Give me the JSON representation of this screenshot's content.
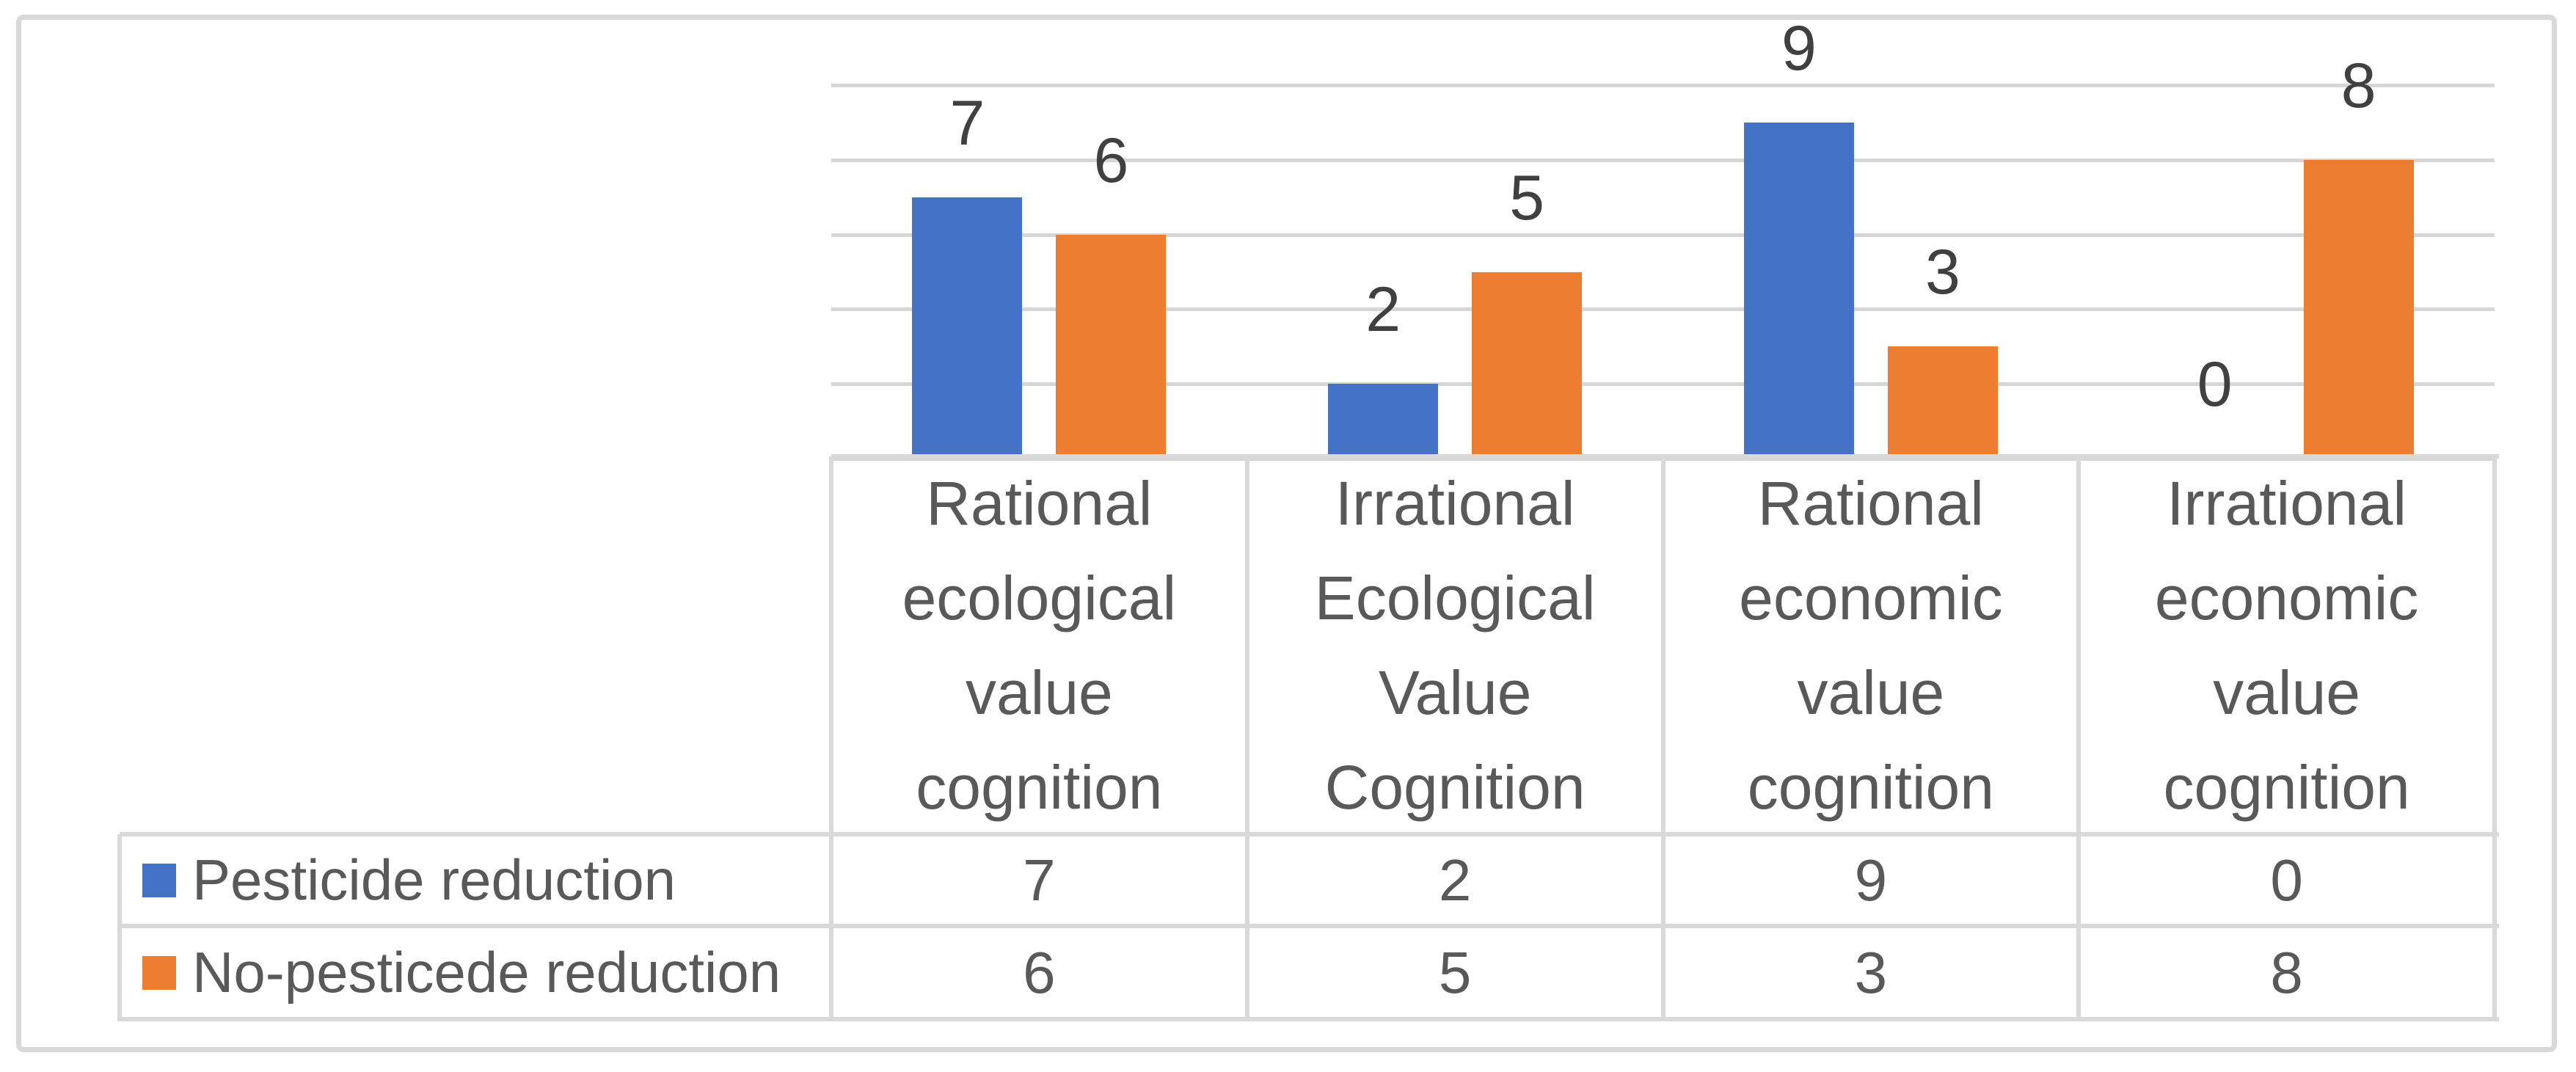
{
  "chart_data": {
    "type": "bar",
    "title": "",
    "categories": [
      "Rational ecological value cognition",
      "Irrational Ecological Value Cognition",
      "Rational economic value cognition",
      "Irrational economic value cognition"
    ],
    "series": [
      {
        "name": "Pesticide reduction",
        "color": "#4472C4",
        "values": [
          7,
          2,
          9,
          0
        ]
      },
      {
        "name": "No-pesticede reduction",
        "color": "#ED7D31",
        "values": [
          6,
          5,
          3,
          8
        ]
      }
    ],
    "data_labels": [
      "7",
      "6",
      "2",
      "5",
      "9",
      "3",
      "0",
      "8"
    ],
    "ylim": [
      0,
      10
    ],
    "ytick_step": 2,
    "y_axis_labels_visible": false,
    "grid": "horizontal",
    "legend_position": "table-rows-left",
    "layout": "chart-above-data-table"
  },
  "table": {
    "column_headers": [
      "Rational ecological value cognition",
      "Irrational Ecological Value Cognition",
      "Rational economic value cognition",
      "Irrational economic value cognition"
    ],
    "rows": [
      {
        "label": "Pesticide reduction",
        "swatch_color": "#4472C4",
        "values": [
          "7",
          "2",
          "9",
          "0"
        ]
      },
      {
        "label": "No-pesticede reduction",
        "swatch_color": "#ED7D31",
        "values": [
          "6",
          "5",
          "3",
          "8"
        ]
      }
    ]
  },
  "style": {
    "series1_color": "#4472C4",
    "series2_color": "#ED7D31",
    "gridline_color": "#D6D6D6",
    "table_border_color": "#D9D9D9",
    "outer_border_color": "#D9D9D9",
    "table_text_color": "#595959",
    "data_label_color": "#404040",
    "background_color": "#FFFFFF"
  }
}
